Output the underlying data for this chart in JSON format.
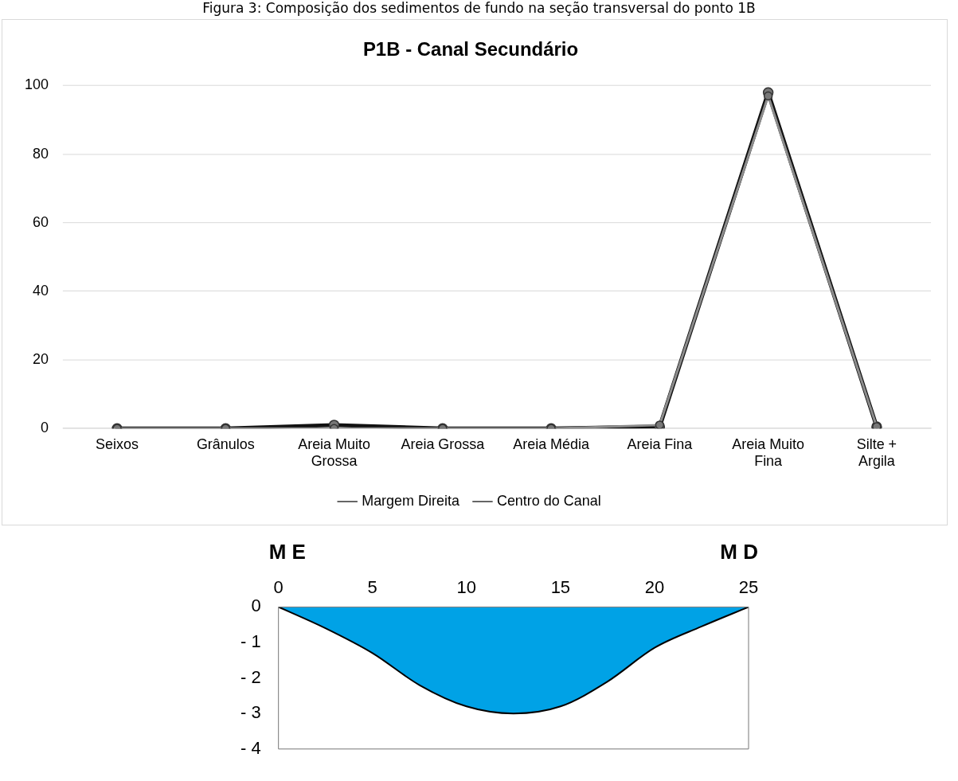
{
  "chart_data": [
    {
      "type": "line",
      "title": "P1B - Canal Secundário",
      "annotations": [
        "Figura 3: Composição dos sedimentos de fundo na seção transversal do ponto 1B"
      ],
      "categories": [
        "Seixos",
        "Grânulos",
        "Areia Muito Grossa",
        "Areia Grossa",
        "Areia Média",
        "Areia Fina",
        "Areia Muito Fina",
        "Silte + Argila"
      ],
      "series": [
        {
          "name": "Centro do Canal",
          "color": "#111111",
          "values": [
            0,
            0,
            1,
            0,
            0,
            0.5,
            98,
            0.5
          ]
        },
        {
          "name": "Margem Direita",
          "color": "#8c8c8c",
          "values": [
            0,
            0,
            0,
            0,
            0,
            1,
            97,
            0.5
          ]
        }
      ],
      "ylim": [
        0,
        100
      ],
      "yticks": [
        0,
        20,
        40,
        60,
        80,
        100
      ],
      "grid": "y",
      "legend": "bottom",
      "marker": "circle",
      "line_style": "solid"
    },
    {
      "type": "area",
      "annotations": [
        "M E",
        "M D"
      ],
      "x": [
        0,
        2.5,
        5,
        7.5,
        10,
        12.5,
        15,
        17.5,
        20,
        22.5,
        25
      ],
      "series": [
        {
          "color": "#00a2e6",
          "values": [
            0,
            -0.6,
            -1.3,
            -2.2,
            -2.8,
            -3.0,
            -2.8,
            -2.1,
            -1.15,
            -0.55,
            0
          ]
        }
      ],
      "xlim": [
        0,
        25
      ],
      "xticks": [
        0,
        5,
        10,
        15,
        20,
        25
      ],
      "ylim": [
        -4,
        0
      ],
      "yticks": [
        {
          "value": -4,
          "label": "- 4"
        },
        {
          "value": -3,
          "label": "- 3"
        },
        {
          "value": -2,
          "label": "- 2"
        },
        {
          "value": -1,
          "label": "- 1"
        },
        0
      ],
      "grid": false,
      "marker": "none"
    }
  ]
}
